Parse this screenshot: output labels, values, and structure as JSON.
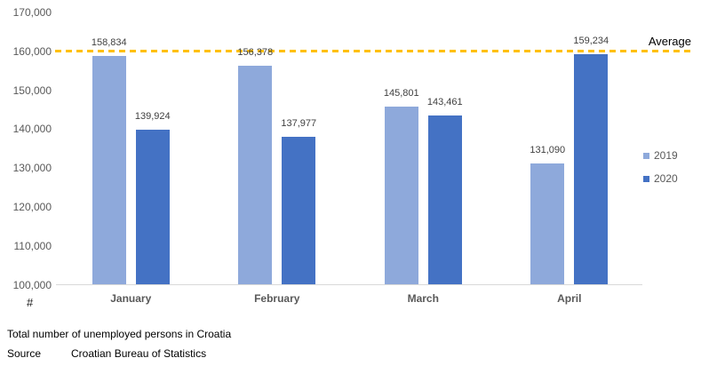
{
  "chart_data": {
    "type": "bar",
    "categories": [
      "January",
      "February",
      "March",
      "April"
    ],
    "series": [
      {
        "name": "2019",
        "color": "#8EA9DB",
        "values": [
          158834,
          156378,
          145801,
          131090
        ],
        "labels": [
          "158,834",
          "156,378",
          "145,801",
          "131,090"
        ]
      },
      {
        "name": "2020",
        "color": "#4472C4",
        "values": [
          139924,
          137977,
          143461,
          159234
        ],
        "labels": [
          "139,924",
          "137,977",
          "143,461",
          "159,234"
        ]
      }
    ],
    "y_axis": {
      "min": 100000,
      "max": 170000,
      "step": 10000,
      "tick_labels": [
        "100,000",
        "110,000",
        "120,000",
        "130,000",
        "140,000",
        "150,000",
        "160,000",
        "170,000"
      ],
      "unit_label": "#"
    },
    "average_line": {
      "label": "Average",
      "value": 160000,
      "color": "#FFC000",
      "style": "dashed"
    },
    "legend": {
      "position": "right",
      "entries": [
        "2019",
        "2020"
      ]
    },
    "grid": false,
    "xlabel": "",
    "ylabel": "#"
  },
  "footer": {
    "caption": "Total number of unemployed persons in Croatia",
    "source_label": "Source",
    "source_value": "Croatian Bureau of Statistics"
  },
  "colors": {
    "series_2019": "#8EA9DB",
    "series_2020": "#4472C4",
    "average_line": "#FFC000",
    "axis_text": "#595959",
    "data_label_text": "#404040",
    "baseline": "#D9D9D9"
  }
}
